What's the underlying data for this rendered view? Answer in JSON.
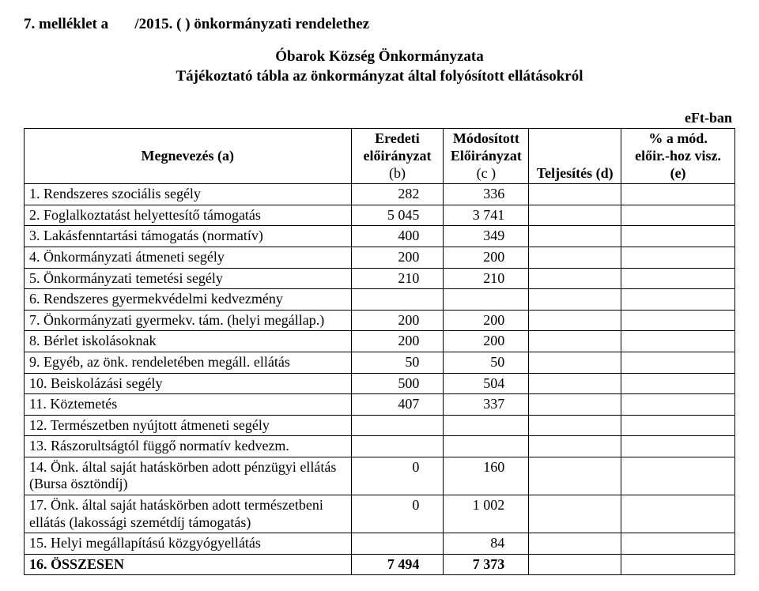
{
  "header": {
    "pre": "7. melléklet a",
    "mid": "/2015.  (   )  önkormányzati rendelethez",
    "title1": "Óbarok Község Önkormányzata",
    "title2": "Tájékoztató tábla az önkormányzat által folyósított ellátásokról",
    "unit": "eFt-ban"
  },
  "columns": {
    "a": "Megnevezés (a)",
    "b1": "Eredeti előirányzat",
    "b2": "(b)",
    "c1": "Módosított",
    "c2": "Előirányzat",
    "c3": "(c )",
    "d": "Teljesítés (d)",
    "e1": "% a mód.",
    "e2": "előir.-hoz visz. (e)"
  },
  "rows": [
    {
      "label": "1. Rendszeres szociális segély",
      "b": "282",
      "c": "336",
      "d": "",
      "e": ""
    },
    {
      "label": "2. Foglalkoztatást helyettesítő támogatás",
      "b": "5 045",
      "c": "3 741",
      "d": "",
      "e": ""
    },
    {
      "label": "3. Lakásfenntartási támogatás (normatív)",
      "b": "400",
      "c": "349",
      "d": "",
      "e": ""
    },
    {
      "label": "4. Önkormányzati átmeneti segély",
      "b": "200",
      "c": "200",
      "d": "",
      "e": ""
    },
    {
      "label": "5. Önkormányzati temetési segély",
      "b": "210",
      "c": "210",
      "d": "",
      "e": ""
    },
    {
      "label": "6. Rendszeres gyermekvédelmi kedvezmény",
      "b": "",
      "c": "",
      "d": "",
      "e": ""
    },
    {
      "label": "7. Önkormányzati gyermekv. tám. (helyi megállap.)",
      "b": "200",
      "c": "200",
      "d": "",
      "e": ""
    },
    {
      "label": "8. Bérlet iskolásoknak",
      "b": "200",
      "c": "200",
      "d": "",
      "e": ""
    },
    {
      "label": "9. Egyéb, az önk. rendeletében megáll. ellátás",
      "b": "50",
      "c": "50",
      "d": "",
      "e": ""
    },
    {
      "label": "10. Beiskolázási segély",
      "b": "500",
      "c": "504",
      "d": "",
      "e": ""
    },
    {
      "label": "11. Köztemetés",
      "b": "407",
      "c": "337",
      "d": "",
      "e": ""
    },
    {
      "label": "12. Természetben nyújtott átmeneti segély",
      "b": "",
      "c": "",
      "d": "",
      "e": ""
    },
    {
      "label": "13. Rászorultságtól függő normatív kedvezm.",
      "b": "",
      "c": "",
      "d": "",
      "e": ""
    },
    {
      "label": "14. Önk. által saját hatáskörben adott pénzügyi ellátás (Bursa ösztöndíj)",
      "b": "0",
      "c": "160",
      "d": "",
      "e": ""
    },
    {
      "label": "17. Önk. által saját hatáskörben adott természetbeni ellátás (lakossági szemétdíj támogatás)",
      "b": "0",
      "c": "1 002",
      "d": "",
      "e": ""
    },
    {
      "label": "15. Helyi megállapítású közgyógyellátás",
      "b": "",
      "c": "84",
      "d": "",
      "e": ""
    }
  ],
  "total": {
    "label": "16. ÖSSZESEN",
    "b": "7 494",
    "c": "7 373",
    "d": "",
    "e": ""
  }
}
